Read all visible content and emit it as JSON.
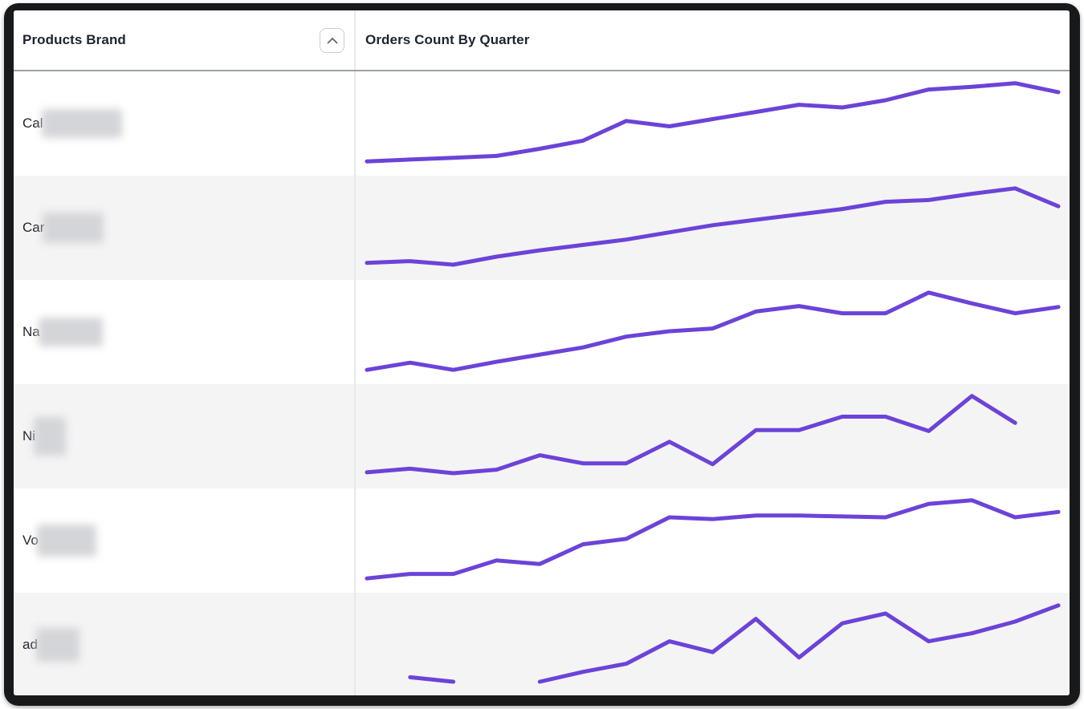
{
  "widget": {
    "kind": "table-with-sparklines"
  },
  "header": {
    "col1_label": "Products Brand",
    "col2_label": "Orders Count By Quarter",
    "sort_direction": "ascending"
  },
  "table": {
    "rows": [
      {
        "brand_prefix": "Cal",
        "redacted": true,
        "redaction_width": 100,
        "redaction_height": 36
      },
      {
        "brand_prefix": "Car",
        "redacted": true,
        "redaction_width": 76,
        "redaction_height": 38
      },
      {
        "brand_prefix": "Na",
        "redacted": true,
        "redaction_width": 80,
        "redaction_height": 36
      },
      {
        "brand_prefix": "Ni",
        "redacted": true,
        "redaction_width": 40,
        "redaction_height": 48
      },
      {
        "brand_prefix": "Vo",
        "redacted": true,
        "redaction_width": 74,
        "redaction_height": 40
      },
      {
        "brand_prefix": "ad",
        "redacted": true,
        "redaction_width": 54,
        "redaction_height": 42
      }
    ]
  },
  "chart_data": {
    "type": "line",
    "title": "Orders Count By Quarter",
    "x_unit": "quarter",
    "x_slots": 17,
    "value_unit": "relative orders count (0-100 scale estimated from sparkline pixels; no axis labels shown)",
    "grid": false,
    "legend": false,
    "line_color": "#6c43d8",
    "series": [
      {
        "name": "Cal (redacted)",
        "values": [
          7,
          9,
          11,
          13,
          21,
          30,
          52,
          46,
          54,
          62,
          70,
          67,
          75,
          87,
          90,
          94,
          84
        ]
      },
      {
        "name": "Car (redacted)",
        "values": [
          10,
          12,
          8,
          17,
          24,
          30,
          36,
          44,
          52,
          58,
          64,
          70,
          78,
          80,
          87,
          93,
          73
        ]
      },
      {
        "name": "Na (redacted)",
        "values": [
          7,
          15,
          7,
          16,
          24,
          32,
          44,
          50,
          53,
          72,
          78,
          70,
          70,
          93,
          81,
          70,
          77
        ]
      },
      {
        "name": "Ni (redacted)",
        "values": [
          9,
          13,
          8,
          12,
          28,
          19,
          19,
          43,
          18,
          56,
          56,
          71,
          71,
          55,
          94,
          64,
          null
        ]
      },
      {
        "name": "Vo (redacted)",
        "values": [
          7,
          12,
          12,
          27,
          23,
          45,
          51,
          75,
          73,
          77,
          77,
          76,
          75,
          90,
          94,
          75,
          81
        ]
      },
      {
        "name": "ad (redacted)",
        "values": [
          null,
          13,
          8,
          null,
          8,
          19,
          28,
          53,
          41,
          78,
          35,
          73,
          84,
          53,
          62,
          75,
          93
        ]
      }
    ]
  },
  "colors": {
    "accent_line": "#6c43d8",
    "row_stripe": "#f4f4f5",
    "header_rule": "#99a1ab",
    "column_divider": "#e7e8ea",
    "frame": "#17191b",
    "text": "#1d242e",
    "sort_button_border": "#c9cdd2",
    "sort_icon": "#5f6672"
  }
}
